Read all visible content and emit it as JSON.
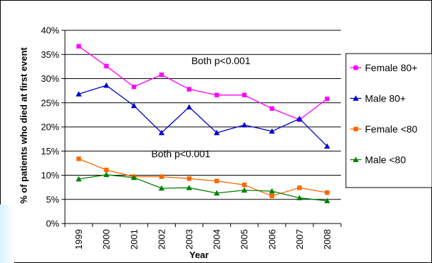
{
  "chart_data": {
    "type": "line",
    "title": "",
    "xlabel": "Year",
    "ylabel": "% of patients who died at first event",
    "x": [
      "1999",
      "2000",
      "2001",
      "2002",
      "2003",
      "2004",
      "2005",
      "2006",
      "2007",
      "2008"
    ],
    "ylim": [
      0,
      40
    ],
    "y_ticks": [
      "0%",
      "5%",
      "10%",
      "15%",
      "20%",
      "25%",
      "30%",
      "35%",
      "40%"
    ],
    "grid": true,
    "legend_placement": "right",
    "series": [
      {
        "name": "Female 80+",
        "color": "#ff00ff",
        "marker": "square",
        "values": [
          36.7,
          32.6,
          28.3,
          30.8,
          27.8,
          26.6,
          26.6,
          23.8,
          21.5,
          25.8
        ]
      },
      {
        "name": "Male 80+",
        "color": "#0000cc",
        "marker": "triangle",
        "values": [
          26.8,
          28.6,
          24.4,
          18.8,
          24.1,
          18.8,
          20.4,
          19.1,
          21.7,
          16.0
        ]
      },
      {
        "name": "Female <80",
        "color": "#ff6600",
        "marker": "square",
        "values": [
          13.4,
          11.1,
          9.7,
          9.7,
          9.3,
          8.8,
          8.0,
          5.7,
          7.4,
          6.4
        ]
      },
      {
        "name": "Male <80",
        "color": "#008000",
        "marker": "triangle",
        "values": [
          9.2,
          10.1,
          9.5,
          7.3,
          7.4,
          6.3,
          6.9,
          6.7,
          5.3,
          4.7
        ]
      }
    ],
    "annotations": [
      {
        "text": "Both p<0.001",
        "x": 5.15,
        "y": 33.0
      },
      {
        "text": "Both p<0.001",
        "x": 3.7,
        "y": 13.7
      }
    ]
  }
}
